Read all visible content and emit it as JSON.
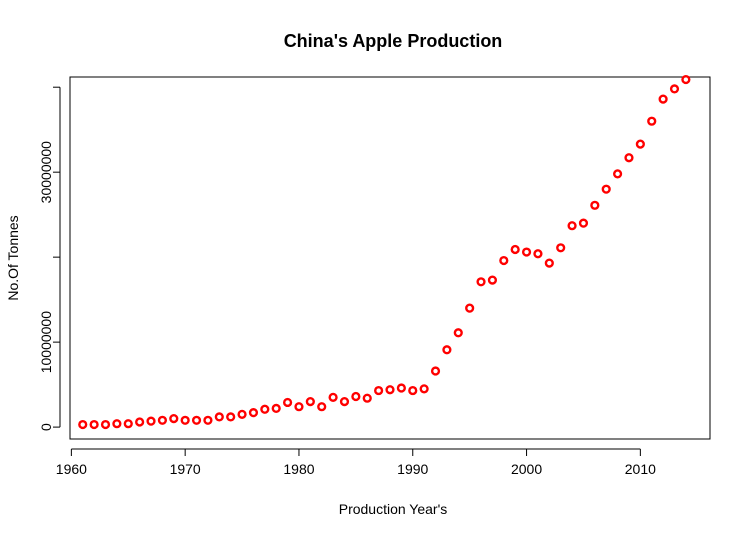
{
  "chart_data": {
    "type": "scatter",
    "title": "China's Apple Production",
    "xlabel": "Production Year's",
    "ylabel": "No.Of Tonnes",
    "xlim": [
      1959.88,
      2016.12
    ],
    "ylim": [
      -1400000,
      41200000
    ],
    "x_ticks": [
      1960,
      1970,
      1980,
      1990,
      2000,
      2010
    ],
    "y_ticks": [
      0,
      10000000,
      20000000,
      30000000,
      40000000
    ],
    "y_tick_labels": [
      "0",
      "10000000",
      "",
      "30000000",
      ""
    ],
    "grid": false,
    "marker_color": "#ff0000",
    "series": [
      {
        "x": [
          1961,
          1962,
          1963,
          1964,
          1965,
          1966,
          1967,
          1968,
          1969,
          1970,
          1971,
          1972,
          1973,
          1974,
          1975,
          1976,
          1977,
          1978,
          1979,
          1980,
          1981,
          1982,
          1983,
          1984,
          1985,
          1986,
          1987,
          1988,
          1989,
          1990,
          1991,
          1992,
          1993,
          1994,
          1995,
          1996,
          1997,
          1998,
          1999,
          2000,
          2001,
          2002,
          2003,
          2004,
          2005,
          2006,
          2007,
          2008,
          2009,
          2010,
          2011,
          2012,
          2013,
          2014
        ],
        "y": [
          300000,
          300000,
          300000,
          400000,
          400000,
          600000,
          700000,
          800000,
          1000000,
          800000,
          800000,
          800000,
          1200000,
          1200000,
          1500000,
          1700000,
          2100000,
          2200000,
          2900000,
          2400000,
          3000000,
          2400000,
          3500000,
          3000000,
          3600000,
          3400000,
          4300000,
          4400000,
          4600000,
          4300000,
          4500000,
          6600000,
          9100000,
          11100000,
          14000000,
          17100000,
          17300000,
          19600000,
          20900000,
          20600000,
          20400000,
          19300000,
          21100000,
          23700000,
          24000000,
          26100000,
          28000000,
          29800000,
          31700000,
          33300000,
          36000000,
          38600000,
          39800000,
          40900000
        ]
      }
    ]
  }
}
